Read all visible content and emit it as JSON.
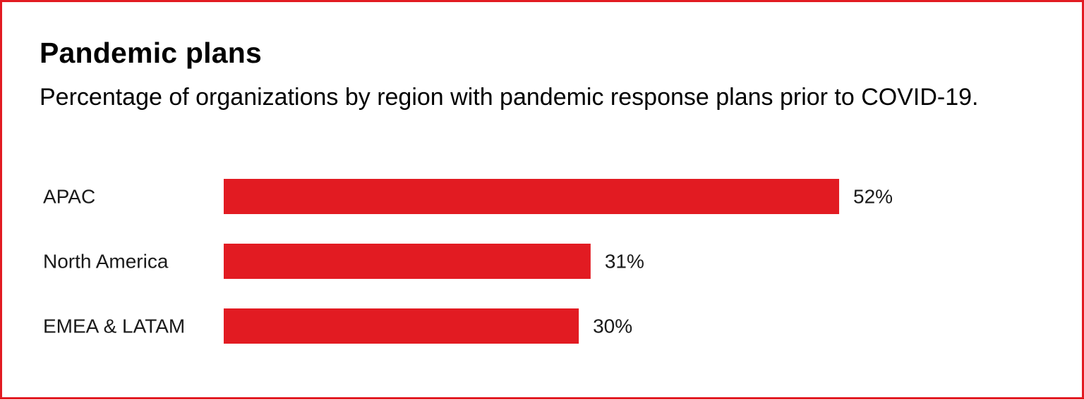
{
  "title": "Pandemic plans",
  "subtitle": "Percentage of organizations by region with pandemic response plans prior to COVID-19.",
  "colors": {
    "accent": "#e21b22",
    "text": "#000000"
  },
  "chart_data": {
    "type": "bar",
    "orientation": "horizontal",
    "categories": [
      "APAC",
      "North America",
      "EMEA & LATAM"
    ],
    "values": [
      52,
      31,
      30
    ],
    "value_labels": [
      "52%",
      "31%",
      "30%"
    ],
    "unit": "%",
    "xlim": [
      0,
      100
    ],
    "grid": false,
    "legend": "none"
  }
}
